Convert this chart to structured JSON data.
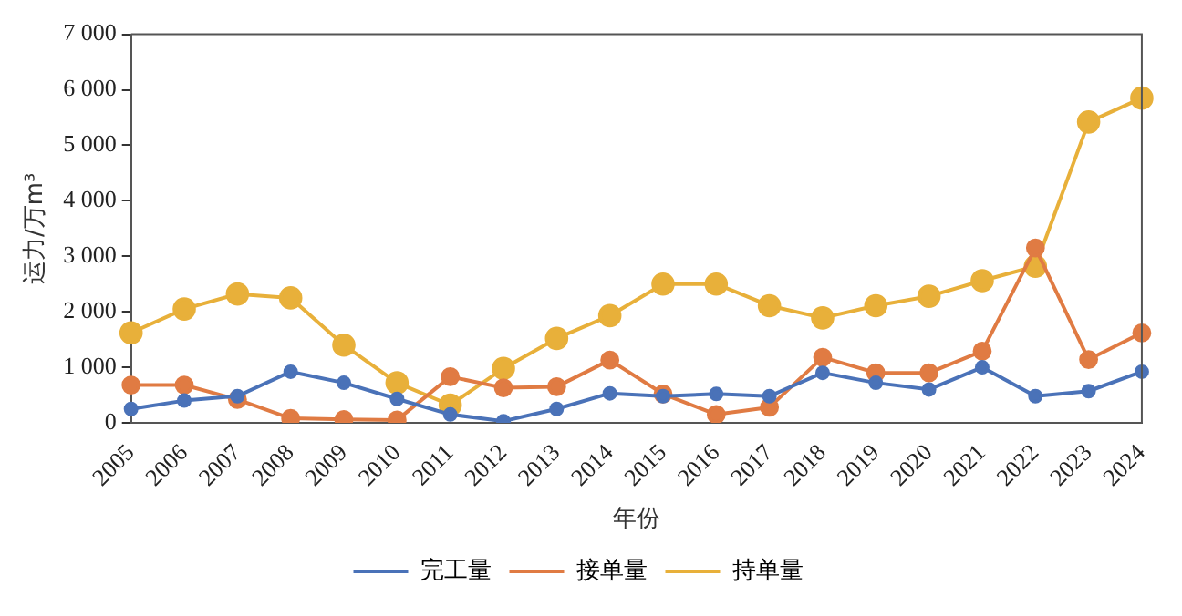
{
  "chart_data": {
    "type": "line",
    "xlabel": "年份",
    "ylabel": "运力/万m³",
    "categories": [
      "2005",
      "2006",
      "2007",
      "2008",
      "2009",
      "2010",
      "2011",
      "2012",
      "2013",
      "2014",
      "2015",
      "2016",
      "2017",
      "2018",
      "2019",
      "2020",
      "2021",
      "2022",
      "2023",
      "2024"
    ],
    "series": [
      {
        "name": "完工量",
        "color": "#4a72b8",
        "values": [
          250,
          400,
          480,
          920,
          720,
          430,
          150,
          30,
          250,
          530,
          480,
          520,
          480,
          900,
          720,
          600,
          1000,
          480,
          570,
          920
        ]
      },
      {
        "name": "接单量",
        "color": "#e07b43",
        "values": [
          680,
          680,
          420,
          80,
          60,
          50,
          830,
          630,
          650,
          1130,
          520,
          150,
          280,
          1180,
          900,
          900,
          1290,
          3150,
          1140,
          1620
        ]
      },
      {
        "name": "持单量",
        "color": "#e8b03a",
        "values": [
          1620,
          2050,
          2320,
          2250,
          1400,
          720,
          320,
          980,
          1520,
          1930,
          2500,
          2500,
          2110,
          1890,
          2110,
          2280,
          2560,
          2820,
          5420,
          5850
        ]
      }
    ],
    "ylim": [
      0,
      7000
    ],
    "yticks": [
      0,
      {
        "value": 1000,
        "label": "1 000"
      },
      {
        "value": 2000,
        "label": "2 000"
      },
      {
        "value": 3000,
        "label": "3 000"
      },
      {
        "value": 4000,
        "label": "4 000"
      },
      {
        "value": 5000,
        "label": "5 000"
      },
      {
        "value": 6000,
        "label": "6 000"
      },
      {
        "value": 7000,
        "label": "7 000"
      }
    ],
    "grid": false,
    "legend": "bottom",
    "marker": "circle",
    "line_style": "solid"
  }
}
